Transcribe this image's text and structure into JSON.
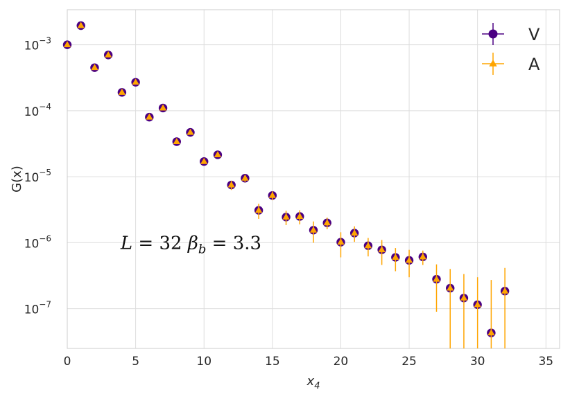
{
  "chart_data": {
    "type": "scatter",
    "title": "",
    "xlabel": "x",
    "xlabel_sub": "4",
    "ylabel": "G(x)",
    "xlim": [
      0,
      36
    ],
    "ylim": [
      2.5e-08,
      0.0034
    ],
    "yscale": "log",
    "grid": true,
    "legend_position": "top-right",
    "xticks": [
      0,
      5,
      10,
      15,
      20,
      25,
      30,
      35
    ],
    "yticks": [
      {
        "value": 0.001,
        "base": "10",
        "exp": "−3"
      },
      {
        "value": 0.0001,
        "base": "10",
        "exp": "−4"
      },
      {
        "value": 1e-05,
        "base": "10",
        "exp": "−5"
      },
      {
        "value": 1e-06,
        "base": "10",
        "exp": "−6"
      },
      {
        "value": 1e-07,
        "base": "10",
        "exp": "−7"
      }
    ],
    "annotation": {
      "L_sym": "L",
      "L_text": " = 32 ",
      "beta_sym": "β",
      "beta_sub": "b",
      "beta_text": " = 3.3",
      "at": [
        3.9,
        1e-06
      ]
    },
    "series": [
      {
        "name": "V",
        "color": "#4b0082",
        "marker": "circle",
        "x": [
          0,
          1,
          2,
          3,
          4,
          5,
          6,
          7,
          8,
          9,
          10,
          11,
          12,
          13,
          14,
          15,
          16,
          17,
          18,
          19,
          20,
          21,
          22,
          23,
          24,
          25,
          26,
          27,
          28,
          29,
          30,
          31,
          32
        ],
        "y": [
          0.001,
          0.00195,
          0.00045,
          0.0007,
          0.00019,
          0.00027,
          8e-05,
          0.00011,
          3.4e-05,
          4.7e-05,
          1.7e-05,
          2.15e-05,
          7.5e-06,
          9.5e-06,
          3.1e-06,
          5.2e-06,
          2.45e-06,
          2.5e-06,
          1.55e-06,
          2e-06,
          1.02e-06,
          1.4e-06,
          9e-07,
          7.8e-07,
          6e-07,
          5.4e-07,
          6.1e-07,
          2.8e-07,
          2.05e-07,
          1.45e-07,
          1.15e-07,
          4.3e-08,
          1.85e-07
        ],
        "err": [
          0,
          0,
          0,
          0,
          0,
          0,
          0,
          0,
          0,
          0,
          0,
          0,
          0,
          0,
          0,
          0,
          0,
          0,
          0,
          0,
          0,
          0,
          0,
          0,
          0,
          0,
          0,
          0,
          0,
          0,
          0,
          0,
          0
        ]
      },
      {
        "name": "A",
        "color": "#ffa500",
        "marker": "triangle",
        "x": [
          0,
          1,
          2,
          3,
          4,
          5,
          6,
          7,
          8,
          9,
          10,
          11,
          12,
          13,
          14,
          15,
          16,
          17,
          18,
          19,
          20,
          21,
          22,
          23,
          24,
          25,
          26,
          27,
          28,
          29,
          30,
          31,
          32
        ],
        "y": [
          0.001,
          0.00195,
          0.00045,
          0.0007,
          0.00019,
          0.00027,
          8e-05,
          0.00011,
          3.4e-05,
          4.7e-05,
          1.7e-05,
          2.15e-05,
          7.5e-06,
          9.5e-06,
          3.1e-06,
          5.2e-06,
          2.45e-06,
          2.5e-06,
          1.55e-06,
          2e-06,
          1.02e-06,
          1.4e-06,
          9e-07,
          7.8e-07,
          6e-07,
          5.4e-07,
          6.1e-07,
          2.8e-07,
          2.05e-07,
          1.45e-07,
          1.15e-07,
          4.3e-08,
          1.85e-07
        ],
        "err": [
          4e-05,
          6e-05,
          1.5e-05,
          2e-05,
          8e-06,
          1e-05,
          3e-06,
          4e-06,
          1.5e-06,
          2e-06,
          8e-07,
          1e-06,
          1.2e-06,
          1.2e-06,
          8e-07,
          8e-07,
          6e-07,
          6e-07,
          5.5e-07,
          4e-07,
          4.2e-07,
          3.7e-07,
          2.8e-07,
          3.2e-07,
          2.3e-07,
          2.4e-07,
          1.5e-07,
          1.9e-07,
          1.95e-07,
          1.9e-07,
          1.85e-07,
          2.3e-07,
          2.3e-07
        ]
      }
    ]
  }
}
